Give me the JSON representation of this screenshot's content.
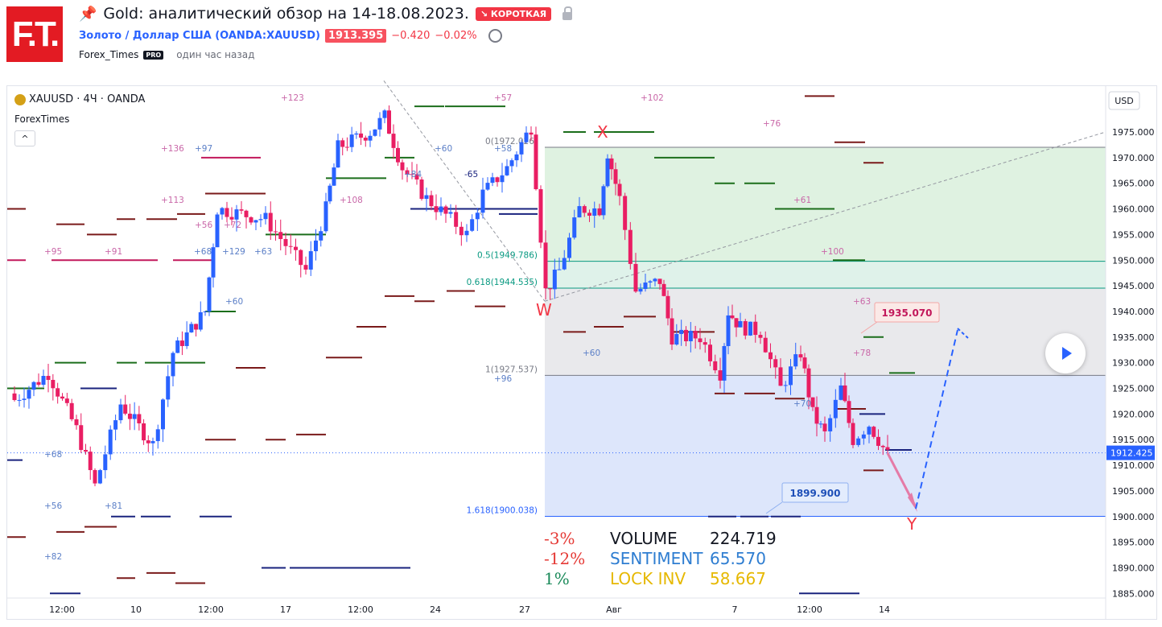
{
  "header": {
    "logo_text": "F.T.",
    "title": "Gold: аналитический обзор на 14-18.08.2023.",
    "badge": "↘ КОРОТКАЯ",
    "symbol": "Золото / Доллар США (OANDA:XAUUSD)",
    "price": "1913.395",
    "change": "−0.420",
    "change_pct": "−0.02%",
    "author": "Forex_Times",
    "author_badge": "PRO",
    "time_ago": "один час назад"
  },
  "legend": {
    "symbol": "XAUUSD · 4Ч · OANDA",
    "indicator": "ForexTimes",
    "collapse": "^"
  },
  "colors": {
    "up": "#089981",
    "down": "#f23645",
    "candle_up": "#2962ff",
    "candle_down": "#e91e63",
    "zone_green": "#dff2e1",
    "zone_teal": "#dff2ea",
    "zone_gray": "#e9e9ec",
    "zone_blue": "#dde6fb",
    "dark_red": "#7a1a1a",
    "green": "#1b6e1b",
    "navy": "#1a237e",
    "magenta": "#c2185b"
  },
  "chart_data": {
    "type": "candlestick",
    "currency": "USD",
    "last_price_label": "1912.425",
    "ylim": [
      1882,
      1980
    ],
    "y_ticks": [
      "1975.000",
      "1970.000",
      "1965.000",
      "1960.000",
      "1955.000",
      "1950.000",
      "1945.000",
      "1940.000",
      "1935.000",
      "1930.000",
      "1925.000",
      "1920.000",
      "1915.000",
      "1910.000",
      "1905.000",
      "1900.000",
      "1895.000",
      "1890.000",
      "1885.000"
    ],
    "x_ticks": [
      "12:00",
      "10",
      "12:00",
      "17",
      "12:00",
      "24",
      "27",
      "Авг",
      "7",
      "12:00",
      "14"
    ],
    "fibonacci": [
      {
        "label": "0(1972.026)",
        "level": 1972.026
      },
      {
        "label": "0.5(1949.786)",
        "level": 1949.786
      },
      {
        "label": "0.618(1944.535)",
        "level": 1944.535
      },
      {
        "label": "1(1927.537)",
        "level": 1927.537
      },
      {
        "label": "1.618(1900.038)",
        "level": 1900.038
      }
    ],
    "wave_labels": [
      "W",
      "X",
      "Y"
    ],
    "callouts": [
      "1935.070",
      "1899.900"
    ],
    "stats": [
      {
        "pct": "-3%",
        "name": "VOLUME",
        "value": "224.719"
      },
      {
        "pct": "-12%",
        "name": "SENTIMENT",
        "value": "65.570"
      },
      {
        "pct": "1%",
        "name": "LOCK INV",
        "value": "58.667"
      }
    ],
    "annotations": [
      "+123",
      "+57",
      "+102",
      "+76",
      "+136",
      "+97",
      "+60",
      "+113",
      "+56",
      "+72",
      "+108",
      "+129",
      "+63",
      "+95",
      "+91",
      "+68",
      "+60",
      "+61",
      "+100",
      "+63",
      "+60",
      "+96",
      "+78",
      "+70",
      "+68",
      "+56",
      "+81",
      "+82",
      "-65",
      "+84",
      "+58"
    ]
  }
}
